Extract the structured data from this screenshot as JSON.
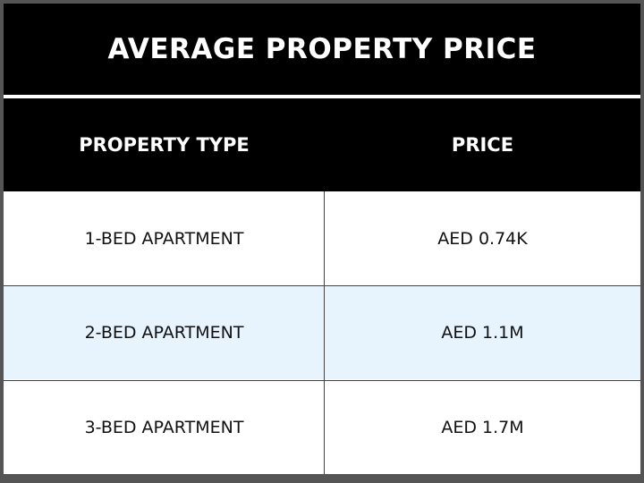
{
  "title": "AVERAGE PROPERTY PRICE",
  "table": {
    "headers": [
      "PROPERTY TYPE",
      "PRICE"
    ],
    "rows": [
      [
        "1-BED APARTMENT",
        "AED 0.74K"
      ],
      [
        "2-BED APARTMENT",
        "AED 1.1M"
      ],
      [
        "3-BED APARTMENT",
        "AED 1.7M"
      ]
    ]
  },
  "colors": {
    "header_background": "#000000",
    "header_text": "#ffffff",
    "highlight_row": "#e8f4fd",
    "body_background": "#ffffff"
  }
}
